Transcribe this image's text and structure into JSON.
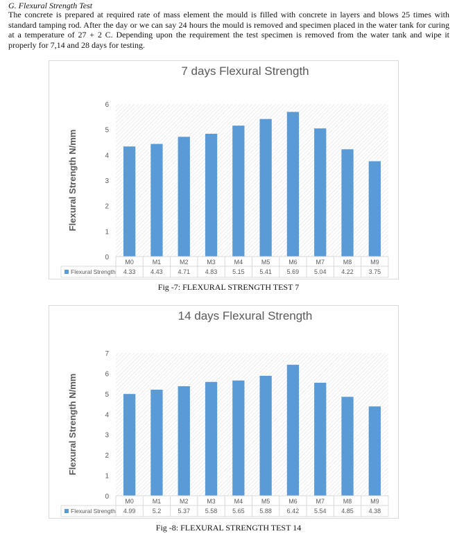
{
  "section": {
    "heading": "G.   Flexural Strength Test",
    "paragraph": "The concrete is prepared at required rate of mass element the mould is filled with concrete in layers and blows 25 times with standard tamping rod. After the day or we can say 24 hours the mould is removed and specimen placed in the water tank for curing at a temperature of 27 + 2 C. Depending upon the requirement the test specimen is removed from the water tank and wipe it properly for 7,14 and 28 days for testing."
  },
  "captions": [
    "Fig -7:   FLEXURAL STRENGTH TEST 7",
    "Fig -8:   FLEXURAL STRENGTH TEST 14"
  ],
  "chart_data": [
    {
      "type": "bar",
      "title": "7 days Flexural Strength",
      "ylabel": "Flexural  Strength N/mm",
      "xlabel": "",
      "ylim": [
        0,
        6
      ],
      "yticks": [
        0,
        1,
        2,
        3,
        4,
        5,
        6
      ],
      "categories": [
        "M0",
        "M1",
        "M2",
        "M3",
        "M4",
        "M5",
        "M6",
        "M7",
        "M8",
        "M9"
      ],
      "series": [
        {
          "name": "Flexural Strength",
          "values": [
            4.33,
            4.43,
            4.71,
            4.83,
            5.15,
            5.41,
            5.69,
            5.04,
            4.22,
            3.75
          ]
        }
      ],
      "value_labels": [
        "4.33",
        "4.43",
        "4.71",
        "4.83",
        "5.15",
        "5.41",
        "5.69",
        "5.04",
        "4.22",
        "3.75"
      ],
      "legend": "data-table",
      "color": "#5b9bd5"
    },
    {
      "type": "bar",
      "title": "14 days Flexural Strength",
      "ylabel": "Flexural  Strength N/mm",
      "xlabel": "",
      "ylim": [
        0,
        7
      ],
      "yticks": [
        0,
        1,
        2,
        3,
        4,
        5,
        6,
        7
      ],
      "categories": [
        "M0",
        "M1",
        "M2",
        "M3",
        "M4",
        "M5",
        "M6",
        "M7",
        "M8",
        "M9"
      ],
      "series": [
        {
          "name": "Flexural Strength",
          "values": [
            4.99,
            5.2,
            5.37,
            5.58,
            5.65,
            5.88,
            6.42,
            5.54,
            4.85,
            4.38
          ]
        }
      ],
      "value_labels": [
        "4.99",
        "5.2",
        "5.37",
        "5.58",
        "5.65",
        "5.88",
        "6.42",
        "5.54",
        "4.85",
        "4.38"
      ],
      "legend": "data-table",
      "color": "#5b9bd5"
    }
  ]
}
